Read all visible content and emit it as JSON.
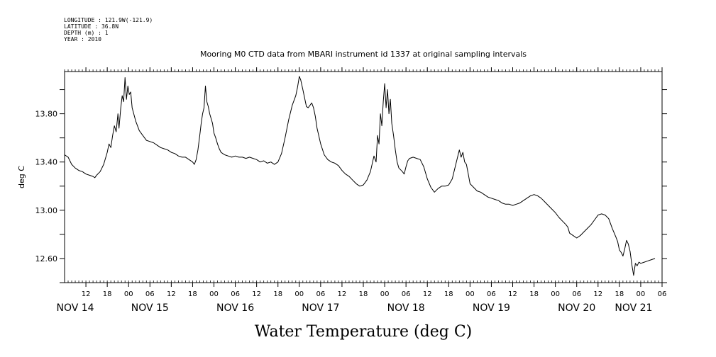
{
  "header": {
    "longitude": "LONGITUDE : 121.9W(-121.9)",
    "latitude": "LATITUDE : 36.8N",
    "depth": "DEPTH (m) : 1",
    "year": "YEAR : 2010"
  },
  "chart_data": {
    "type": "line",
    "title": "Mooring M0 CTD data from MBARI instrument id 1337 at original sampling intervals",
    "xlabel": "Water Temperature (deg C)",
    "ylabel": "deg C",
    "x_unit": "hours since 2010-11-13 06:00",
    "xlim": [
      0,
      168
    ],
    "ylim": [
      12.4,
      14.15
    ],
    "grid": false,
    "legend": "none",
    "y_ticks": [
      {
        "value": 12.6,
        "label": "12.60"
      },
      {
        "value": 13.0,
        "label": "13.00"
      },
      {
        "value": 13.4,
        "label": "13.40"
      },
      {
        "value": 13.8,
        "label": "13.80"
      }
    ],
    "x_hour_ticks": [
      {
        "h": 6,
        "label": "12"
      },
      {
        "h": 12,
        "label": "18"
      },
      {
        "h": 18,
        "label": "00"
      },
      {
        "h": 24,
        "label": "06"
      },
      {
        "h": 30,
        "label": "12"
      },
      {
        "h": 36,
        "label": "18"
      },
      {
        "h": 42,
        "label": "00"
      },
      {
        "h": 48,
        "label": "06"
      },
      {
        "h": 54,
        "label": "12"
      },
      {
        "h": 60,
        "label": "18"
      },
      {
        "h": 66,
        "label": "00"
      },
      {
        "h": 72,
        "label": "06"
      },
      {
        "h": 78,
        "label": "12"
      },
      {
        "h": 84,
        "label": "18"
      },
      {
        "h": 90,
        "label": "00"
      },
      {
        "h": 96,
        "label": "06"
      },
      {
        "h": 102,
        "label": "12"
      },
      {
        "h": 108,
        "label": "18"
      },
      {
        "h": 114,
        "label": "00"
      },
      {
        "h": 120,
        "label": "06"
      },
      {
        "h": 126,
        "label": "12"
      },
      {
        "h": 132,
        "label": "18"
      },
      {
        "h": 138,
        "label": "00"
      },
      {
        "h": 144,
        "label": "06"
      },
      {
        "h": 150,
        "label": "12"
      },
      {
        "h": 156,
        "label": "18"
      },
      {
        "h": 162,
        "label": "00"
      },
      {
        "h": 168,
        "label": "06"
      }
    ],
    "x_day_labels": [
      {
        "h": 3,
        "label": "NOV 14"
      },
      {
        "h": 24,
        "label": "NOV 15"
      },
      {
        "h": 48,
        "label": "NOV 16"
      },
      {
        "h": 72,
        "label": "NOV 17"
      },
      {
        "h": 96,
        "label": "NOV 18"
      },
      {
        "h": 120,
        "label": "NOV 19"
      },
      {
        "h": 144,
        "label": "NOV 20"
      },
      {
        "h": 160,
        "label": "NOV 21"
      }
    ],
    "series": [
      {
        "name": "",
        "color": "#000000",
        "points": [
          [
            0,
            13.46
          ],
          [
            1,
            13.44
          ],
          [
            2,
            13.38
          ],
          [
            3,
            13.35
          ],
          [
            4,
            13.33
          ],
          [
            5,
            13.32
          ],
          [
            6,
            13.3
          ],
          [
            7,
            13.29
          ],
          [
            8,
            13.28
          ],
          [
            8.5,
            13.27
          ],
          [
            9,
            13.29
          ],
          [
            10,
            13.32
          ],
          [
            11,
            13.38
          ],
          [
            12,
            13.48
          ],
          [
            12.5,
            13.55
          ],
          [
            13,
            13.52
          ],
          [
            13.5,
            13.62
          ],
          [
            14,
            13.7
          ],
          [
            14.5,
            13.65
          ],
          [
            15,
            13.8
          ],
          [
            15.3,
            13.68
          ],
          [
            15.8,
            13.85
          ],
          [
            16.2,
            13.95
          ],
          [
            16.6,
            13.9
          ],
          [
            17,
            14.1
          ],
          [
            17.4,
            13.92
          ],
          [
            17.8,
            14.03
          ],
          [
            18.2,
            13.96
          ],
          [
            18.6,
            13.98
          ],
          [
            19,
            13.85
          ],
          [
            20,
            13.74
          ],
          [
            21,
            13.66
          ],
          [
            22,
            13.62
          ],
          [
            23,
            13.58
          ],
          [
            24,
            13.57
          ],
          [
            25,
            13.56
          ],
          [
            26,
            13.54
          ],
          [
            27,
            13.52
          ],
          [
            28,
            13.51
          ],
          [
            29,
            13.5
          ],
          [
            30,
            13.48
          ],
          [
            31,
            13.47
          ],
          [
            32,
            13.45
          ],
          [
            33,
            13.44
          ],
          [
            34,
            13.44
          ],
          [
            35,
            13.42
          ],
          [
            36,
            13.4
          ],
          [
            36.5,
            13.38
          ],
          [
            37,
            13.42
          ],
          [
            37.5,
            13.5
          ],
          [
            38,
            13.62
          ],
          [
            38.4,
            13.72
          ],
          [
            38.8,
            13.8
          ],
          [
            39.2,
            13.85
          ],
          [
            39.6,
            14.03
          ],
          [
            40,
            13.9
          ],
          [
            40.4,
            13.86
          ],
          [
            40.8,
            13.8
          ],
          [
            41.2,
            13.76
          ],
          [
            41.6,
            13.72
          ],
          [
            42,
            13.64
          ],
          [
            42.5,
            13.6
          ],
          [
            43,
            13.55
          ],
          [
            43.5,
            13.51
          ],
          [
            44,
            13.48
          ],
          [
            44.5,
            13.47
          ],
          [
            45,
            13.46
          ],
          [
            46,
            13.45
          ],
          [
            47,
            13.44
          ],
          [
            48,
            13.45
          ],
          [
            49,
            13.44
          ],
          [
            50,
            13.44
          ],
          [
            51,
            13.43
          ],
          [
            52,
            13.44
          ],
          [
            53,
            13.43
          ],
          [
            54,
            13.42
          ],
          [
            55,
            13.4
          ],
          [
            56,
            13.41
          ],
          [
            57,
            13.39
          ],
          [
            58,
            13.4
          ],
          [
            59,
            13.38
          ],
          [
            60,
            13.4
          ],
          [
            61,
            13.47
          ],
          [
            62,
            13.6
          ],
          [
            63,
            13.75
          ],
          [
            64,
            13.87
          ],
          [
            65,
            13.95
          ],
          [
            65.5,
            14.02
          ],
          [
            66,
            14.11
          ],
          [
            66.4,
            14.08
          ],
          [
            67,
            14.0
          ],
          [
            67.5,
            13.93
          ],
          [
            68,
            13.86
          ],
          [
            68.5,
            13.85
          ],
          [
            69,
            13.87
          ],
          [
            69.5,
            13.89
          ],
          [
            70,
            13.85
          ],
          [
            70.5,
            13.78
          ],
          [
            71,
            13.68
          ],
          [
            72,
            13.55
          ],
          [
            73,
            13.46
          ],
          [
            74,
            13.42
          ],
          [
            75,
            13.4
          ],
          [
            76,
            13.39
          ],
          [
            77,
            13.37
          ],
          [
            78,
            13.33
          ],
          [
            79,
            13.3
          ],
          [
            80,
            13.28
          ],
          [
            81,
            13.25
          ],
          [
            82,
            13.22
          ],
          [
            83,
            13.2
          ],
          [
            84,
            13.21
          ],
          [
            85,
            13.25
          ],
          [
            86,
            13.32
          ],
          [
            87,
            13.45
          ],
          [
            87.6,
            13.4
          ],
          [
            88,
            13.62
          ],
          [
            88.4,
            13.55
          ],
          [
            88.8,
            13.8
          ],
          [
            89.2,
            13.7
          ],
          [
            89.6,
            13.9
          ],
          [
            90,
            14.05
          ],
          [
            90.4,
            13.85
          ],
          [
            90.8,
            14.0
          ],
          [
            91.2,
            13.8
          ],
          [
            91.6,
            13.92
          ],
          [
            92,
            13.72
          ],
          [
            92.5,
            13.62
          ],
          [
            93,
            13.5
          ],
          [
            93.5,
            13.4
          ],
          [
            94,
            13.35
          ],
          [
            95,
            13.32
          ],
          [
            95.5,
            13.3
          ],
          [
            96,
            13.36
          ],
          [
            96.5,
            13.41
          ],
          [
            97,
            13.43
          ],
          [
            98,
            13.44
          ],
          [
            99,
            13.43
          ],
          [
            100,
            13.42
          ],
          [
            101,
            13.36
          ],
          [
            102,
            13.26
          ],
          [
            103,
            13.19
          ],
          [
            104,
            13.15
          ],
          [
            105,
            13.18
          ],
          [
            106,
            13.2
          ],
          [
            107,
            13.2
          ],
          [
            108,
            13.21
          ],
          [
            109,
            13.26
          ],
          [
            110,
            13.38
          ],
          [
            110.5,
            13.44
          ],
          [
            111,
            13.5
          ],
          [
            111.5,
            13.44
          ],
          [
            112,
            13.48
          ],
          [
            112.5,
            13.4
          ],
          [
            113,
            13.38
          ],
          [
            113.5,
            13.3
          ],
          [
            114,
            13.22
          ],
          [
            115,
            13.19
          ],
          [
            116,
            13.16
          ],
          [
            117,
            13.15
          ],
          [
            118,
            13.13
          ],
          [
            119,
            13.11
          ],
          [
            120,
            13.1
          ],
          [
            121,
            13.09
          ],
          [
            122,
            13.08
          ],
          [
            123,
            13.06
          ],
          [
            124,
            13.05
          ],
          [
            125,
            13.05
          ],
          [
            126,
            13.04
          ],
          [
            127,
            13.05
          ],
          [
            128,
            13.06
          ],
          [
            129,
            13.08
          ],
          [
            130,
            13.1
          ],
          [
            131,
            13.12
          ],
          [
            132,
            13.13
          ],
          [
            133,
            13.12
          ],
          [
            134,
            13.1
          ],
          [
            135,
            13.07
          ],
          [
            136,
            13.04
          ],
          [
            137,
            13.01
          ],
          [
            138,
            12.98
          ],
          [
            139,
            12.94
          ],
          [
            140,
            12.91
          ],
          [
            141,
            12.88
          ],
          [
            141.5,
            12.86
          ],
          [
            142,
            12.81
          ],
          [
            143,
            12.79
          ],
          [
            144,
            12.77
          ],
          [
            145,
            12.79
          ],
          [
            146,
            12.82
          ],
          [
            147,
            12.85
          ],
          [
            148,
            12.88
          ],
          [
            149,
            12.92
          ],
          [
            150,
            12.96
          ],
          [
            151,
            12.97
          ],
          [
            152,
            12.96
          ],
          [
            153,
            12.93
          ],
          [
            154,
            12.85
          ],
          [
            155,
            12.78
          ],
          [
            155.5,
            12.74
          ],
          [
            156,
            12.67
          ],
          [
            156.5,
            12.65
          ],
          [
            157,
            12.62
          ],
          [
            157.5,
            12.68
          ],
          [
            158,
            12.75
          ],
          [
            158.5,
            12.72
          ],
          [
            159,
            12.66
          ],
          [
            159.5,
            12.55
          ],
          [
            160,
            12.46
          ],
          [
            160.5,
            12.56
          ],
          [
            161,
            12.54
          ],
          [
            161.5,
            12.57
          ],
          [
            162,
            12.56
          ],
          [
            163,
            12.57
          ],
          [
            164,
            12.58
          ],
          [
            165,
            12.59
          ],
          [
            166,
            12.6
          ]
        ]
      }
    ]
  }
}
